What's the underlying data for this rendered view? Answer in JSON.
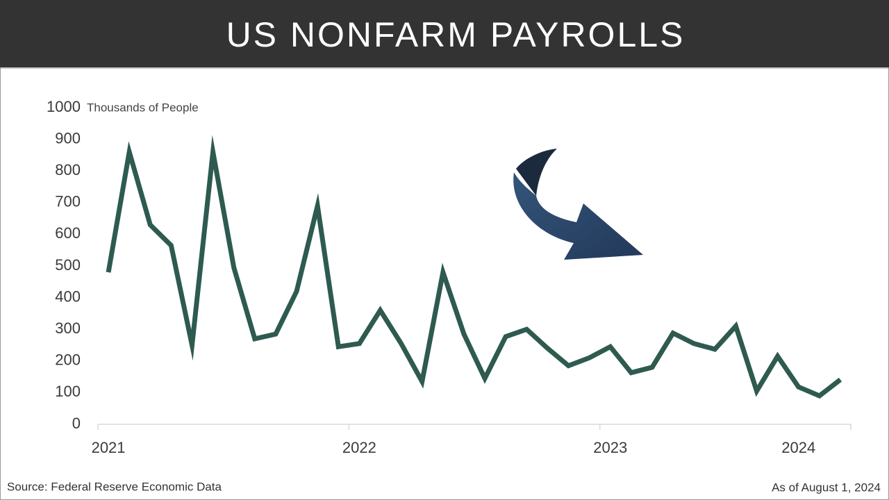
{
  "chart_data": {
    "type": "line",
    "title": "US NONFARM PAYROLLS",
    "y_label": "Thousands of People",
    "source": "Source: Federal Reserve Economic Data",
    "note": "As of August 1, 2024",
    "categories": [
      "2021",
      null,
      null,
      null,
      null,
      null,
      null,
      null,
      null,
      null,
      null,
      null,
      "2022",
      null,
      null,
      null,
      null,
      null,
      null,
      null,
      null,
      null,
      null,
      null,
      "2023",
      null,
      null,
      null,
      null,
      null,
      null,
      null,
      null,
      "2024",
      null,
      null
    ],
    "values": [
      480,
      860,
      630,
      565,
      250,
      860,
      495,
      270,
      285,
      420,
      690,
      245,
      255,
      360,
      255,
      135,
      480,
      285,
      145,
      277,
      300,
      240,
      185,
      210,
      245,
      163,
      180,
      288,
      255,
      237,
      310,
      105,
      215,
      118,
      90,
      141
    ],
    "color": "#2e5a50",
    "ylim": [
      0,
      1000
    ],
    "yticks": [
      0,
      100,
      200,
      300,
      400,
      500,
      600,
      700,
      800,
      900,
      1000
    ],
    "grid": false
  }
}
